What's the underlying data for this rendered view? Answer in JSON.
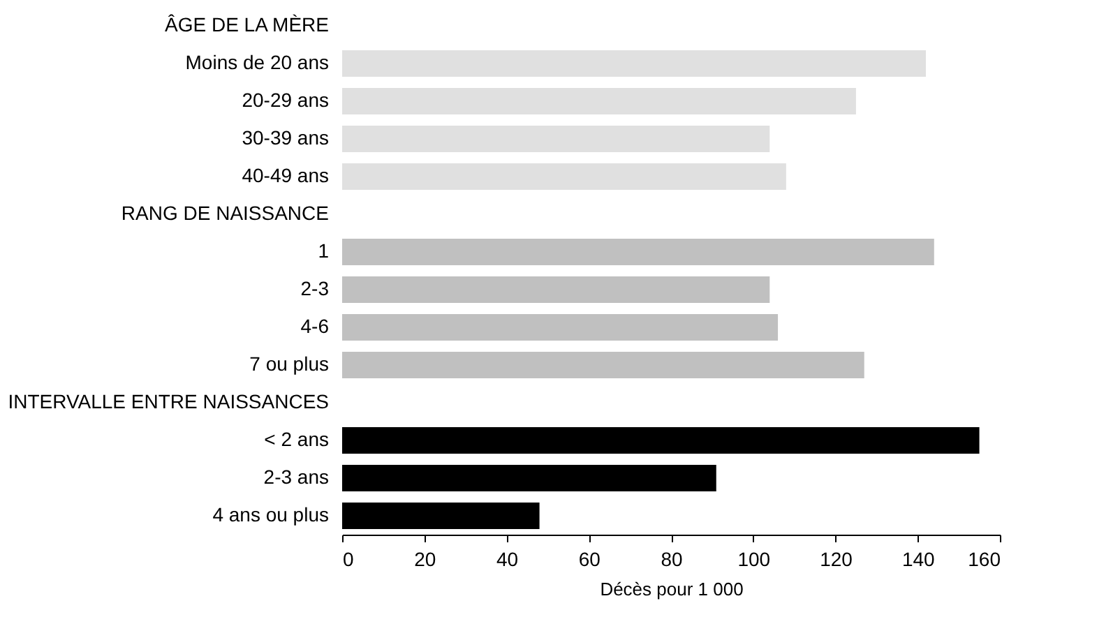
{
  "chart_data": {
    "type": "bar",
    "orientation": "horizontal",
    "xlabel": "Décès pour 1 000",
    "categories": [
      "ÂGE DE LA MÈRE",
      "Moins de 20 ans",
      "20-29 ans",
      "30-39 ans",
      "40-49 ans",
      "RANG DE NAISSANCE",
      "1",
      "2-3",
      "4-6",
      "7 ou plus",
      "INTERVALLE ENTRE NAISSANCES",
      "< 2 ans",
      "2-3 ans",
      "4 ans ou plus"
    ],
    "values": [
      null,
      142,
      125,
      104,
      108,
      null,
      144,
      104,
      106,
      127,
      null,
      155,
      91,
      48
    ],
    "colors": [
      null,
      "#e0e0e0",
      "#e0e0e0",
      "#e0e0e0",
      "#e0e0e0",
      null,
      "#c0c0c0",
      "#c0c0c0",
      "#c0c0c0",
      "#c0c0c0",
      null,
      "#000000",
      "#000000",
      "#000000"
    ],
    "xlim": [
      0,
      160
    ],
    "xticks": [
      0,
      20,
      40,
      60,
      80,
      100,
      120,
      140,
      160
    ],
    "grid": false
  }
}
